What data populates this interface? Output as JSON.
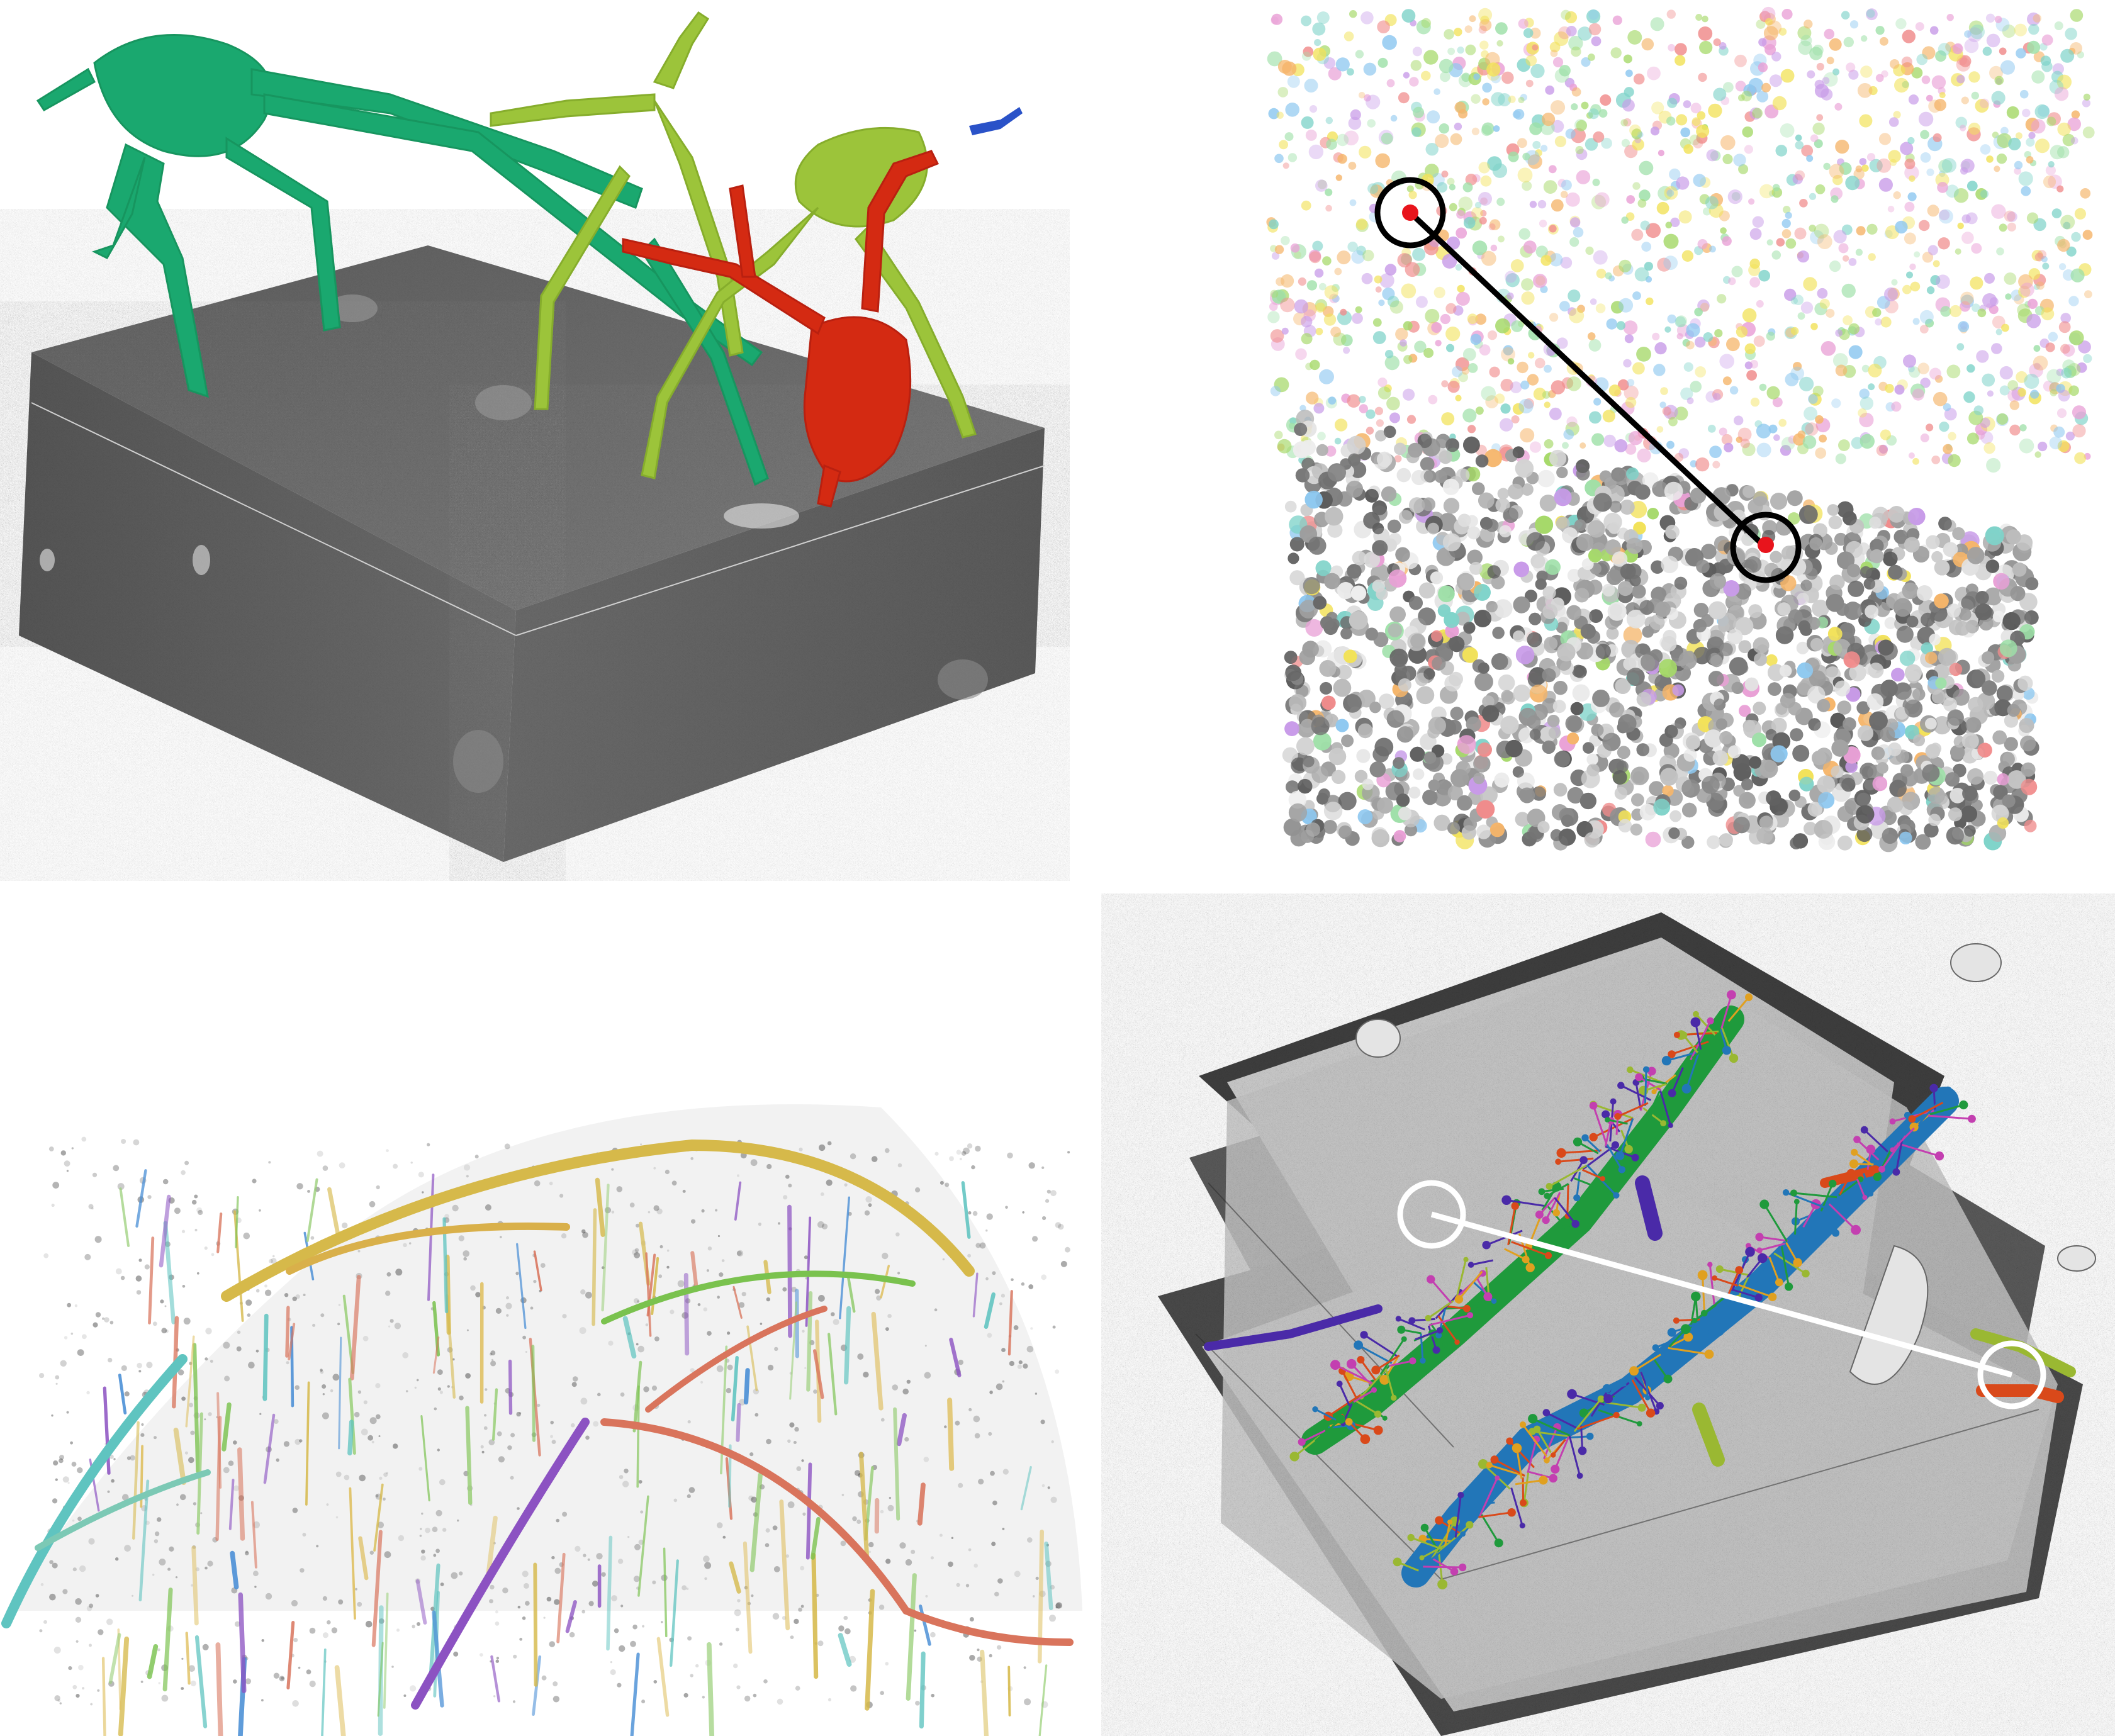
{
  "figure": {
    "background": "#ffffff",
    "panels": [
      {
        "id": "panel-top-left",
        "subject": "em-volume-with-segmented-neurons",
        "colors": [
          "#1aa86f",
          "#2db88a",
          "#9cc43a",
          "#b5cf48",
          "#d42a12",
          "#2a52c8"
        ]
      },
      {
        "id": "panel-top-right",
        "subject": "nuclei-point-cloud-volume",
        "markers": 2,
        "connector_color": "#000000",
        "marker_color": "#e8141c"
      },
      {
        "id": "panel-bottom-left",
        "subject": "neurite-skeleton-tracing-fan",
        "colors": [
          "#d6b94a",
          "#5fc4c0",
          "#8c52c2",
          "#d9745c",
          "#7ac24e",
          "#4a8fd6"
        ]
      },
      {
        "id": "panel-bottom-right",
        "subject": "stacked-em-sections-with-dendrites",
        "markers": 2,
        "connector_color": "#ffffff",
        "colors": [
          "#1f9a3c",
          "#2276b8",
          "#d9491a",
          "#9ab832",
          "#4a2aa8"
        ]
      }
    ]
  }
}
